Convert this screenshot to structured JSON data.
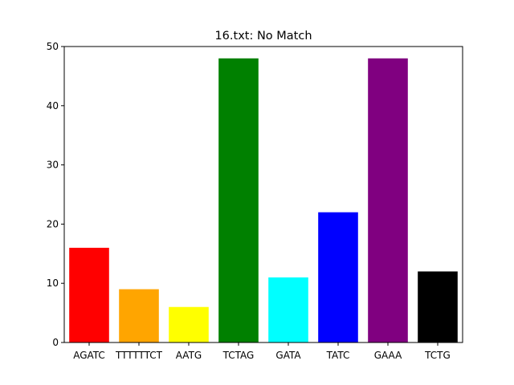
{
  "chart_data": {
    "type": "bar",
    "title": "16.txt: No Match",
    "xlabel": "",
    "ylabel": "",
    "categories": [
      "AGATC",
      "TTTTTTCT",
      "AATG",
      "TCTAG",
      "GATA",
      "TATC",
      "GAAA",
      "TCTG"
    ],
    "values": [
      16,
      9,
      6,
      48,
      11,
      22,
      48,
      12
    ],
    "colors": [
      "#ff0000",
      "#ffa500",
      "#ffff00",
      "#008000",
      "#00ffff",
      "#0000ff",
      "#800080",
      "#000000"
    ],
    "ylim": [
      0,
      50
    ],
    "yticks": [
      0,
      10,
      20,
      30,
      40,
      50
    ],
    "grid": false,
    "legend": "none"
  }
}
